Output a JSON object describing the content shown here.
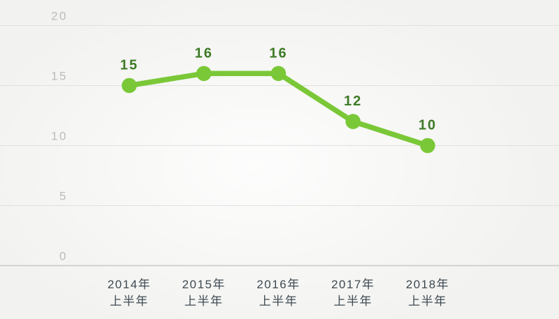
{
  "chart_data": {
    "type": "line",
    "categories": [
      {
        "line1": "2014年",
        "line2": "上半年"
      },
      {
        "line1": "2015年",
        "line2": "上半年"
      },
      {
        "line1": "2016年",
        "line2": "上半年"
      },
      {
        "line1": "2017年",
        "line2": "上半年"
      },
      {
        "line1": "2018年",
        "line2": "上半年"
      }
    ],
    "values": [
      15,
      16,
      16,
      12,
      10
    ],
    "yticks": [
      0,
      5,
      10,
      15,
      20
    ],
    "ylim": [
      0,
      20
    ],
    "grid": true,
    "legend": "none",
    "colors": {
      "line": "#7AC837",
      "point": "#7AC837",
      "value_label": "#3E7B26",
      "x_axis_label": "#3E4A52",
      "y_tick_label": "#BCBCB9",
      "gridline": "#E1E1DE",
      "axis_line": "#C8C8C5",
      "background": "#F2F2F0"
    }
  }
}
